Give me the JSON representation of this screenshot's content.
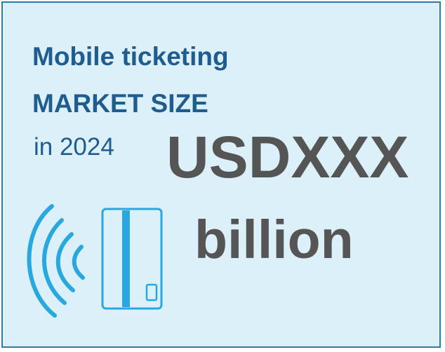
{
  "card": {
    "title_line1": "Mobile ticketing",
    "title_line2": "MARKET SIZE",
    "year_text": "in 2024",
    "value_text": "USDXXX",
    "unit_text": "billion",
    "icon": "contactless-card-icon",
    "colors": {
      "background": "#dcf0fa",
      "border": "#2e7ca0",
      "heading": "#1f5c8f",
      "value": "#555555",
      "icon": "#29a8e0"
    }
  }
}
